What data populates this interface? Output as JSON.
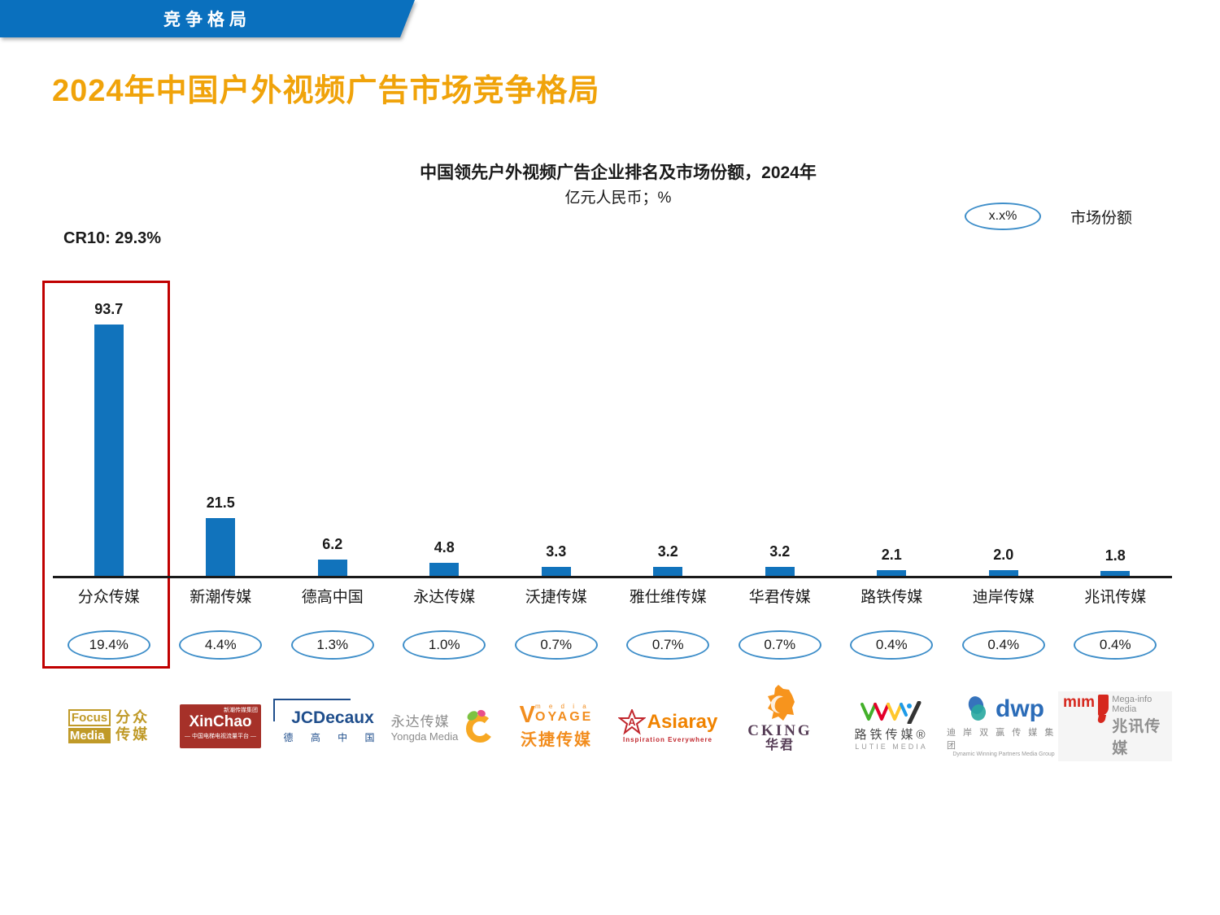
{
  "banner": {
    "label": "竞争格局"
  },
  "page": {
    "title": "2024年中国户外视频广告市场竞争格局"
  },
  "chart_data": {
    "type": "bar",
    "title": "中国领先户外视频广告企业排名及市场份额，2024年",
    "subtitle": "亿元人民币；%",
    "cr_label": "CR10: 29.3%",
    "legend": {
      "sample": "x.x%",
      "label": "市场份额",
      "position": "top-right"
    },
    "categories": [
      "分众传媒",
      "新潮传媒",
      "德高中国",
      "永达传媒",
      "沃捷传媒",
      "雅仕维传媒",
      "华君传媒",
      "路铁传媒",
      "迪岸传媒",
      "兆讯传媒"
    ],
    "values": [
      93.7,
      21.5,
      6.2,
      4.8,
      3.3,
      3.2,
      3.2,
      2.1,
      2.0,
      1.8
    ],
    "shares": [
      "19.4%",
      "4.4%",
      "1.3%",
      "1.0%",
      "0.7%",
      "0.7%",
      "0.7%",
      "0.4%",
      "0.4%",
      "0.4%"
    ],
    "companies": [
      {
        "name": "分众传媒",
        "value": 93.7,
        "share": "19.4%",
        "highlighted": true
      },
      {
        "name": "新潮传媒",
        "value": 21.5,
        "share": "4.4%",
        "highlighted": false
      },
      {
        "name": "德高中国",
        "value": 6.2,
        "share": "1.3%",
        "highlighted": false
      },
      {
        "name": "永达传媒",
        "value": 4.8,
        "share": "1.0%",
        "highlighted": false
      },
      {
        "name": "沃捷传媒",
        "value": 3.3,
        "share": "0.7%",
        "highlighted": false
      },
      {
        "name": "雅仕维传媒",
        "value": 3.2,
        "share": "0.7%",
        "highlighted": false
      },
      {
        "name": "华君传媒",
        "value": 3.2,
        "share": "0.7%",
        "highlighted": false
      },
      {
        "name": "路铁传媒",
        "value": 2.1,
        "share": "0.4%",
        "highlighted": false
      },
      {
        "name": "迪岸传媒",
        "value": 2.0,
        "share": "0.4%",
        "highlighted": false
      },
      {
        "name": "兆讯传媒",
        "value": 1.8,
        "share": "0.4%",
        "highlighted": false
      }
    ],
    "bar_color": "#1173BC",
    "highlight_box_color": "#C00000",
    "ylim": [
      0,
      100
    ],
    "grid": false
  },
  "logos": {
    "focus": {
      "line1": "Focus",
      "line2": "Media",
      "cn1": "分众",
      "cn2": "传媒"
    },
    "xinchao": {
      "tag": "新潮传媒集团",
      "name": "XinChao",
      "sub": "— 中国电梯电视流量平台 —"
    },
    "jcdecaux": {
      "name": "JCDecaux",
      "cn": "德 高 中 国"
    },
    "yongda": {
      "cn": "永达传媒",
      "en": "Yongda Media"
    },
    "voyage": {
      "v": "V",
      "media": "m e d i a",
      "rest": "OYAGE",
      "cn": "沃捷传媒"
    },
    "asiaray": {
      "name": "Asiaray",
      "tag": "Inspiration Everywhere"
    },
    "cking": {
      "name": "CKING",
      "cn": "华君"
    },
    "lutie": {
      "cn": "路铁传媒®",
      "en": "LUTIE MEDIA"
    },
    "dwp": {
      "name": "dwp",
      "cn": "迪 岸 双 赢 传 媒 集 团",
      "en": "Dynamic Winning Partners Media Group"
    },
    "mim": {
      "word": "mım",
      "en": "Mega-info Media",
      "cn": "兆讯传媒"
    }
  }
}
